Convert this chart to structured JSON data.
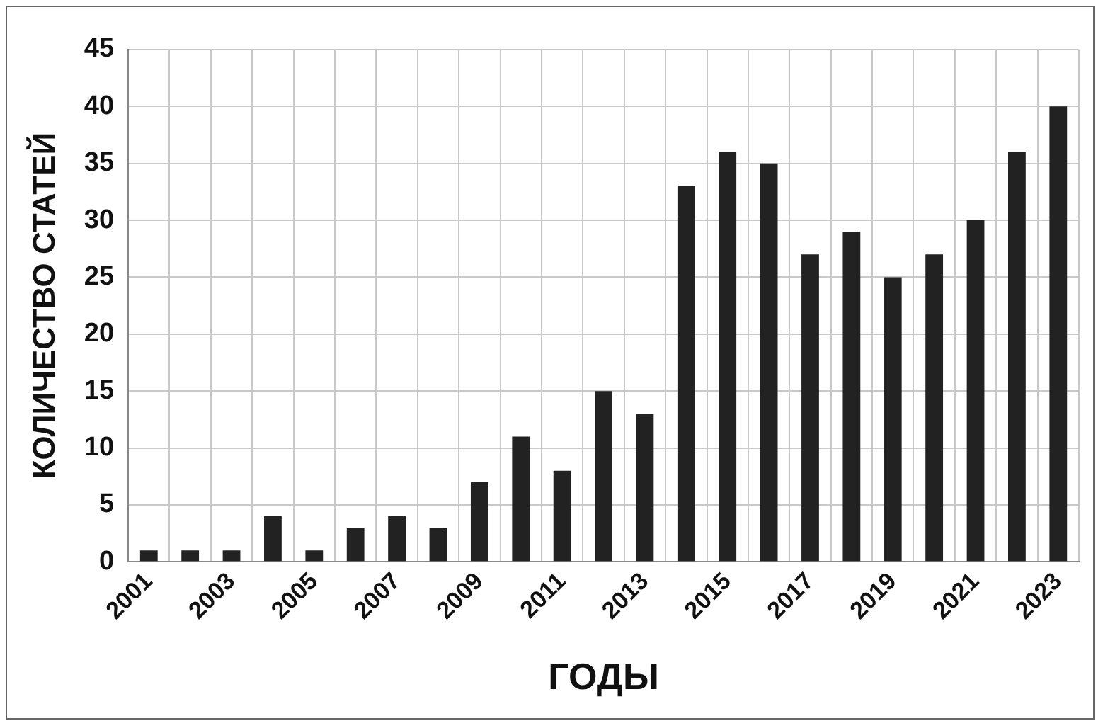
{
  "chart_data": {
    "type": "bar",
    "xlabel": "ГОДЫ",
    "ylabel": "КОЛИЧЕСТВО СТАТЕЙ",
    "categories": [
      "2001",
      null,
      "2003",
      null,
      "2005",
      null,
      "2007",
      null,
      "2009",
      null,
      "2011",
      null,
      "2013",
      null,
      "2015",
      null,
      "2017",
      null,
      "2019",
      null,
      "2021",
      null,
      "2023"
    ],
    "values": [
      1,
      1,
      1,
      4,
      1,
      3,
      4,
      3,
      7,
      11,
      8,
      15,
      13,
      33,
      36,
      35,
      27,
      29,
      25,
      27,
      30,
      36,
      40
    ],
    "color": "#222222",
    "ylim": [
      0,
      45
    ],
    "yticks": [
      0,
      5,
      10,
      15,
      20,
      25,
      30,
      35,
      40,
      45
    ],
    "grid": true,
    "legend": false
  }
}
